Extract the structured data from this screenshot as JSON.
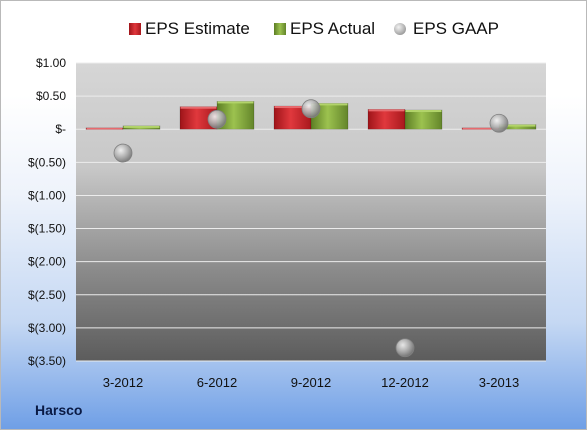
{
  "company": "Harsco",
  "colors": {
    "estimate": "#c8282d",
    "actual": "#7ea33a",
    "gaap": "#a8a8a8"
  },
  "chart_data": {
    "type": "bar",
    "categories": [
      "3-2012",
      "6-2012",
      "9-2012",
      "12-2012",
      "3-2013"
    ],
    "series": [
      {
        "name": "EPS Estimate",
        "type": "bar",
        "values": [
          0.02,
          0.34,
          0.35,
          0.3,
          0.02
        ]
      },
      {
        "name": "EPS Actual",
        "type": "bar",
        "values": [
          0.05,
          0.42,
          0.39,
          0.29,
          0.07
        ]
      },
      {
        "name": "EPS GAAP",
        "type": "scatter",
        "values": [
          -0.36,
          0.15,
          0.31,
          -3.3,
          0.09
        ]
      }
    ],
    "ylim": [
      -3.5,
      1.0
    ],
    "yticks": [
      1.0,
      0.5,
      0.0,
      -0.5,
      -1.0,
      -1.5,
      -2.0,
      -2.5,
      -3.0,
      -3.5
    ],
    "ytick_labels": [
      "$1.00",
      "$0.50",
      "$-",
      "$(0.50)",
      "$(1.00)",
      "$(1.50)",
      "$(2.00)",
      "$(2.50)",
      "$(3.00)",
      "$(3.50)"
    ],
    "grid": true,
    "legend": "top"
  }
}
